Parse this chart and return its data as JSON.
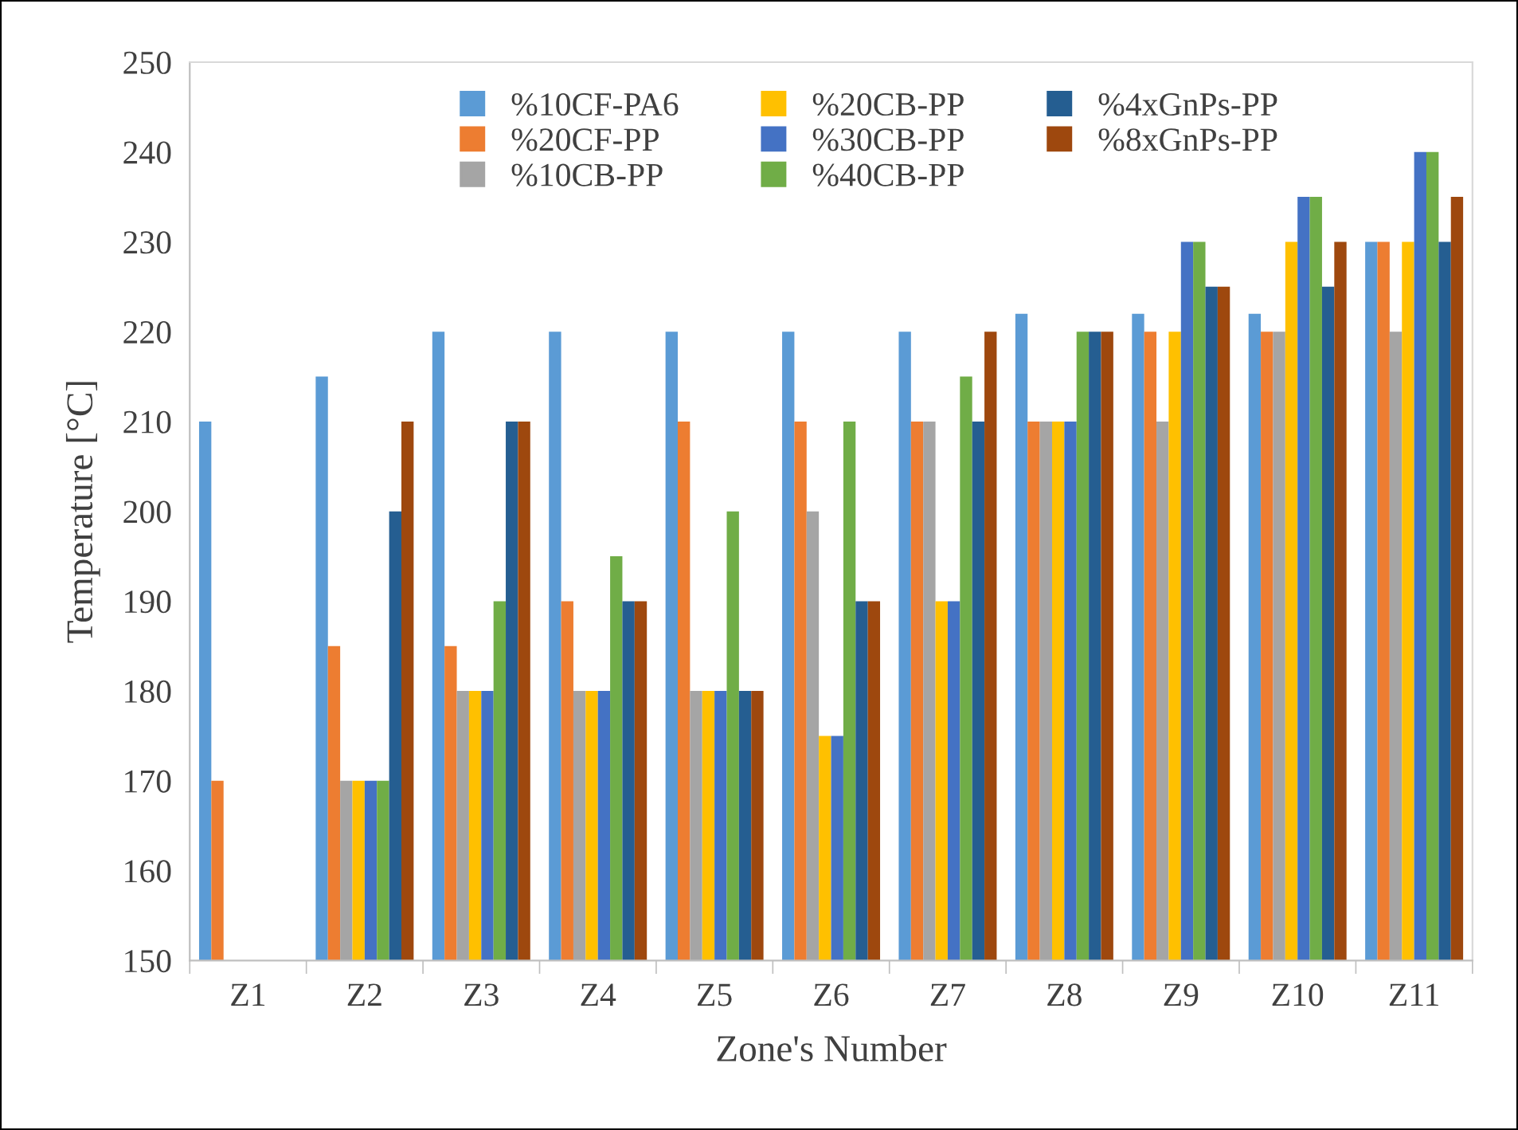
{
  "chart_data": {
    "type": "bar",
    "xlabel": "Zone's Number",
    "ylabel": "Temperature [°C]",
    "categories": [
      "Z1",
      "Z2",
      "Z3",
      "Z4",
      "Z5",
      "Z6",
      "Z7",
      "Z8",
      "Z9",
      "Z10",
      "Z11"
    ],
    "series": [
      {
        "name": "%10CF-PA6",
        "color": "#5b9bd5",
        "values": [
          210,
          215,
          220,
          220,
          220,
          220,
          220,
          222,
          222,
          222,
          230
        ]
      },
      {
        "name": "%20CF-PP",
        "color": "#ed7d31",
        "values": [
          170,
          185,
          185,
          190,
          210,
          210,
          210,
          210,
          220,
          220,
          230
        ]
      },
      {
        "name": "%10CB-PP",
        "color": "#a5a5a5",
        "values": [
          null,
          170,
          180,
          180,
          180,
          200,
          210,
          210,
          210,
          220,
          220
        ]
      },
      {
        "name": "%20CB-PP",
        "color": "#ffc000",
        "values": [
          null,
          170,
          180,
          180,
          180,
          175,
          190,
          210,
          220,
          230,
          230
        ]
      },
      {
        "name": "%30CB-PP",
        "color": "#4472c4",
        "values": [
          null,
          170,
          180,
          180,
          180,
          175,
          190,
          210,
          230,
          235,
          240
        ]
      },
      {
        "name": "%40CB-PP",
        "color": "#70ad47",
        "values": [
          null,
          170,
          190,
          195,
          200,
          210,
          215,
          220,
          230,
          235,
          240
        ]
      },
      {
        "name": "%4xGnPs-PP",
        "color": "#255e91",
        "values": [
          null,
          200,
          210,
          190,
          180,
          190,
          210,
          220,
          225,
          225,
          230
        ]
      },
      {
        "name": "%8xGnPs-PP",
        "color": "#9e480e",
        "values": [
          null,
          210,
          210,
          190,
          180,
          190,
          220,
          220,
          225,
          230,
          235
        ]
      }
    ],
    "ylim": [
      150,
      250
    ],
    "yticks": [
      150,
      160,
      170,
      180,
      190,
      200,
      210,
      220,
      230,
      240,
      250
    ],
    "grid": false,
    "legend": "top"
  }
}
